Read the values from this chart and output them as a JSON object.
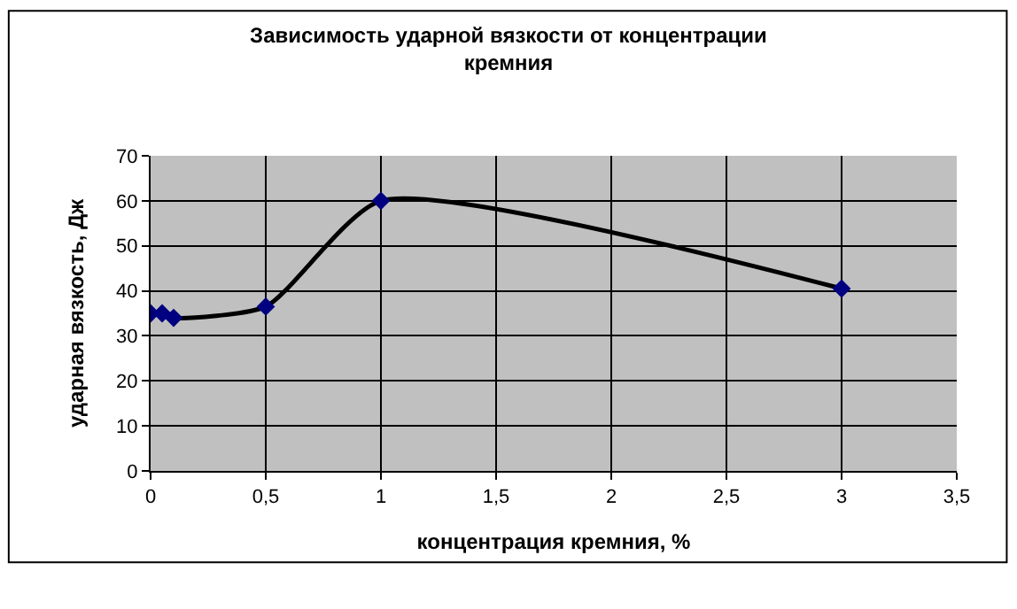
{
  "chart_data": {
    "type": "line",
    "title": "Зависимость ударной вязкости от концентрации\nкремния",
    "xlabel": "концентрация кремния, %",
    "ylabel": "ударная вязкость, Дж",
    "series": [
      {
        "color": "#000080",
        "x": [
          0,
          0.05,
          0.1,
          0.5,
          1,
          3
        ],
        "values": [
          35,
          35,
          34,
          36.5,
          60,
          40.5
        ]
      }
    ],
    "xlim": [
      0,
      3.5
    ],
    "xticks": [
      0,
      {
        "value": 0.5,
        "label": "0,5"
      },
      1,
      {
        "value": 1.5,
        "label": "1,5"
      },
      2,
      {
        "value": 2.5,
        "label": "2,5"
      },
      3,
      {
        "value": 3.5,
        "label": "3,5"
      }
    ],
    "ylim": [
      0,
      70
    ],
    "yticks": [
      0,
      10,
      20,
      30,
      40,
      50,
      60,
      70
    ],
    "grid": true,
    "marker": "diamond",
    "line_style": "solid"
  }
}
